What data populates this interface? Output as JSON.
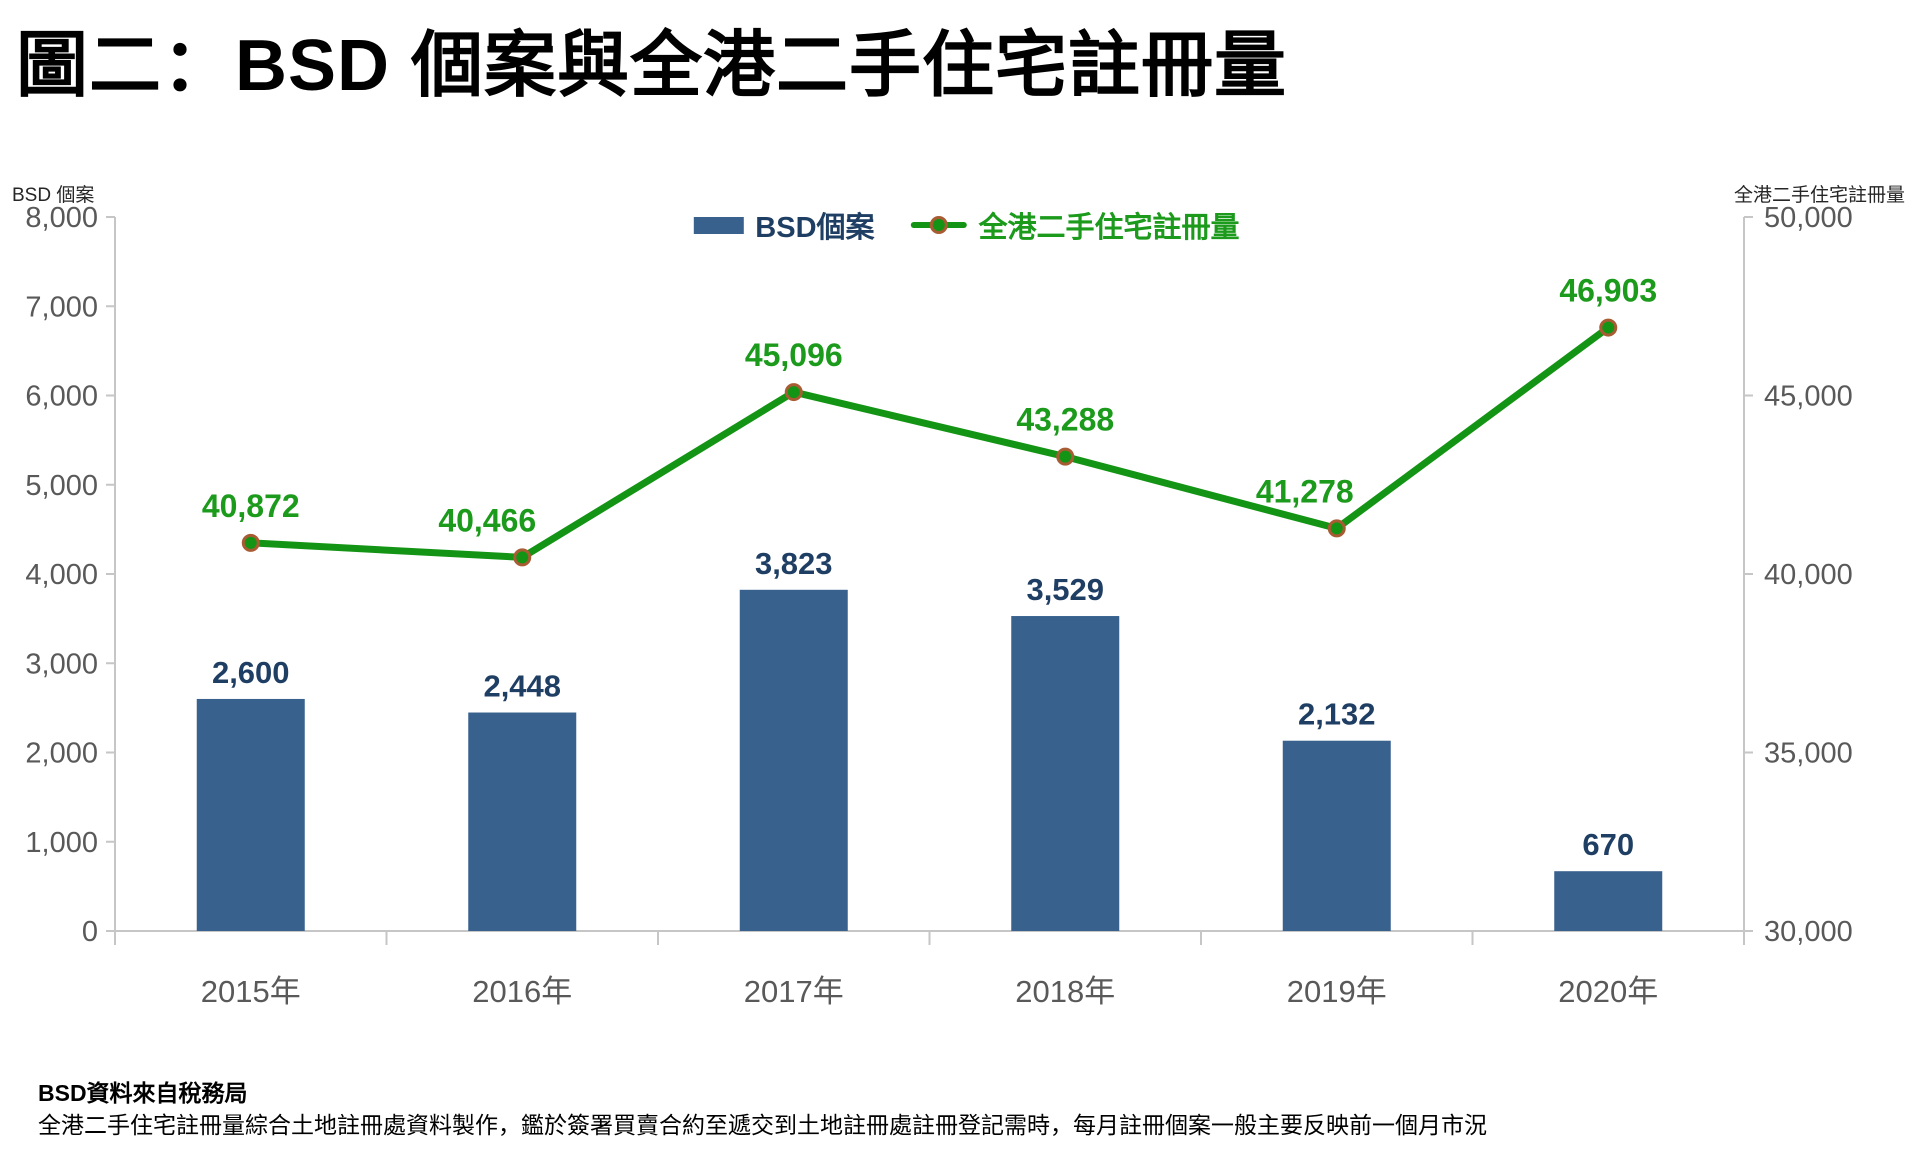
{
  "title": "圖二：BSD 個案與全港二手住宅註冊量",
  "left_axis_title": "BSD 個案",
  "right_axis_title": "全港二手住宅註冊量",
  "legend": {
    "bar_label": "BSD個案",
    "line_label": "全港二手住宅註冊量"
  },
  "footer": {
    "line1": "BSD資料來自稅務局",
    "line2": "全港二手住宅註冊量綜合土地註冊處資料製作，鑑於簽署買賣合約至遞交到土地註冊處註冊登記需時，每月註冊個案一般主要反映前一個月市況"
  },
  "colors": {
    "bar": "#39618E",
    "bar_label": "#1F3E63",
    "line": "#149414",
    "line_label": "#1B9A1B",
    "marker_ring": "#A85C33",
    "axis_line": "#C6C6C6",
    "tick_text": "#595959"
  },
  "chart_data": {
    "type": "bar+line combo",
    "categories": [
      "2015年",
      "2016年",
      "2017年",
      "2018年",
      "2019年",
      "2020年"
    ],
    "series": [
      {
        "name": "BSD個案",
        "type": "bar",
        "axis": "left",
        "values": [
          2600,
          2448,
          3823,
          3529,
          2132,
          670
        ],
        "labels": [
          "2,600",
          "2,448",
          "3,823",
          "3,529",
          "2,132",
          "670"
        ]
      },
      {
        "name": "全港二手住宅註冊量",
        "type": "line",
        "axis": "right",
        "values": [
          40872,
          40466,
          45096,
          43288,
          41278,
          46903
        ],
        "labels": [
          "40,872",
          "40,466",
          "45,096",
          "43,288",
          "41,278",
          "46,903"
        ],
        "label_dx_hint": [
          0,
          -35,
          0,
          0,
          -32,
          0
        ]
      }
    ],
    "left_axis": {
      "title": "BSD 個案",
      "min": 0,
      "max": 8000,
      "step": 1000,
      "tick_labels": [
        "0",
        "1,000",
        "2,000",
        "3,000",
        "4,000",
        "5,000",
        "6,000",
        "7,000",
        "8,000"
      ]
    },
    "right_axis": {
      "title": "全港二手住宅註冊量",
      "min": 30000,
      "max": 50000,
      "step": 5000,
      "tick_labels": [
        "30,000",
        "35,000",
        "40,000",
        "45,000",
        "50,000"
      ]
    },
    "grid": false,
    "legend_position": "top-center"
  }
}
